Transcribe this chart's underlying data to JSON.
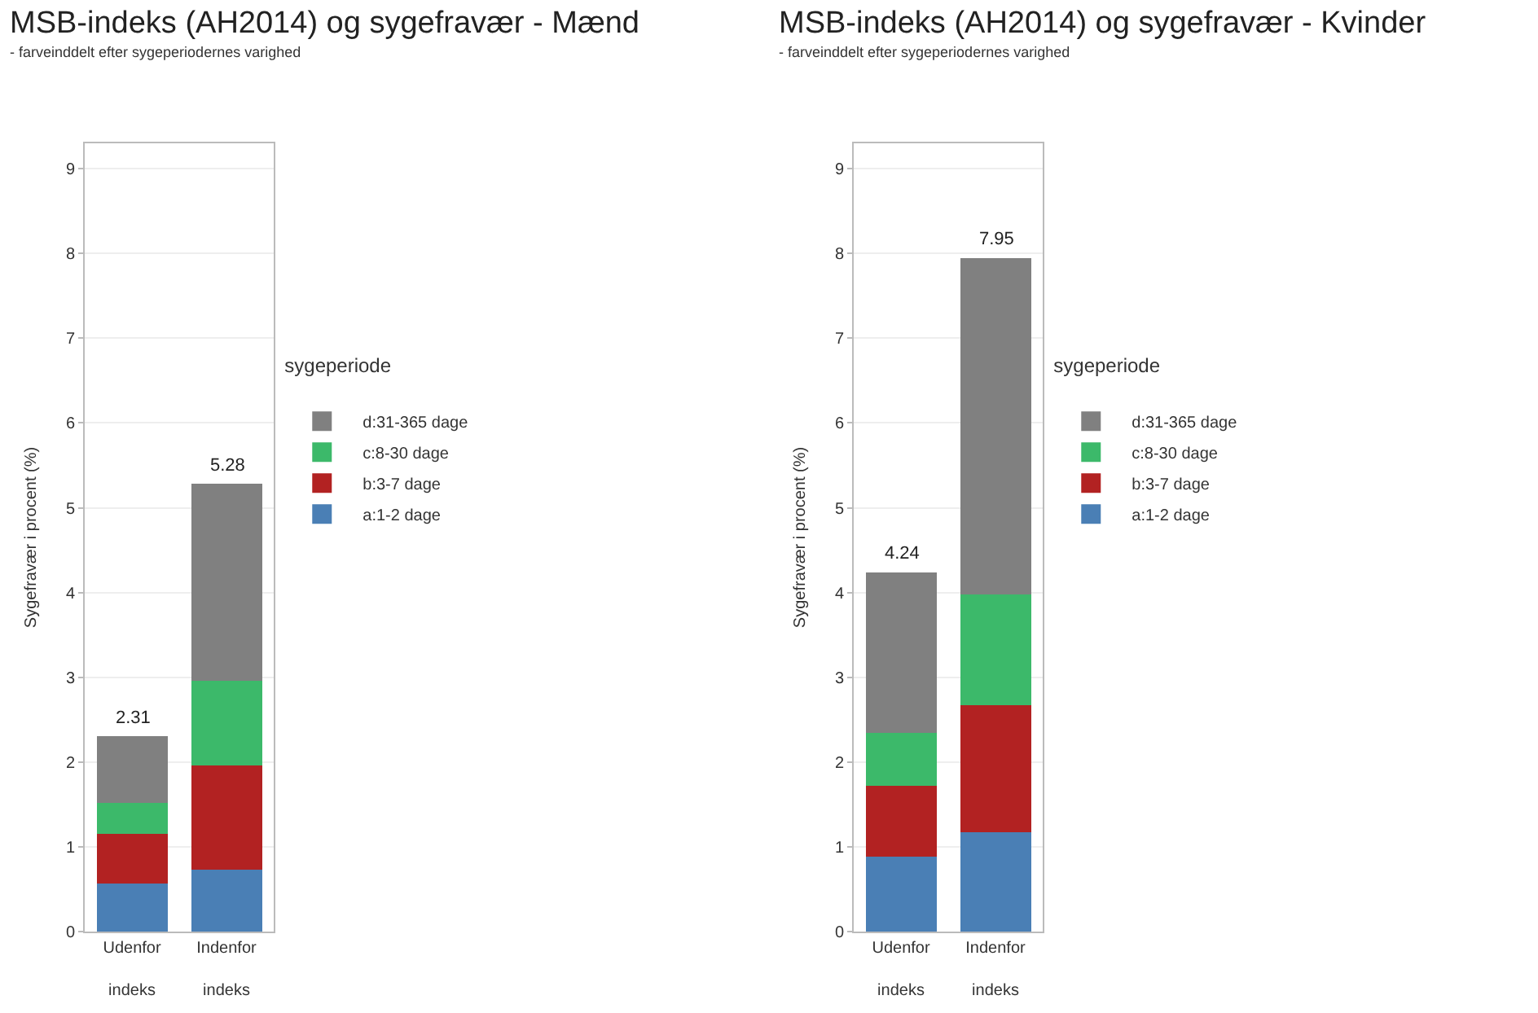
{
  "chart_data": [
    {
      "type": "bar",
      "stacked": true,
      "title": "MSB-indeks (AH2014) og sygefravær - Mænd",
      "subtitle": "- farveinddelt efter sygeperiodernes varighed",
      "ylabel": "Sygefravær i procent (%)",
      "legend_title": "sygeperiode",
      "categories": [
        "Udenfor\nindeks",
        "Indenfor\nindeks"
      ],
      "ylim": [
        0,
        9.3
      ],
      "yticks": [
        0,
        1,
        2,
        3,
        4,
        5,
        6,
        7,
        8,
        9
      ],
      "grid": "y",
      "legend": "right",
      "totals": [
        "2.31",
        "5.28"
      ],
      "series": [
        {
          "name": "a:1-2 dage",
          "color": "#4a7fb5",
          "values": [
            0.57,
            0.73
          ]
        },
        {
          "name": "b:3-7 dage",
          "color": "#b22222",
          "values": [
            0.58,
            1.23
          ]
        },
        {
          "name": "c:8-30 dage",
          "color": "#3cb96a",
          "values": [
            0.37,
            1.0
          ]
        },
        {
          "name": "d:31-365 dage",
          "color": "#808080",
          "values": [
            0.79,
            2.32
          ]
        }
      ]
    },
    {
      "type": "bar",
      "stacked": true,
      "title": "MSB-indeks (AH2014) og sygefravær - Kvinder",
      "subtitle": "- farveinddelt efter sygeperiodernes varighed",
      "ylabel": "Sygefravær i procent (%)",
      "legend_title": "sygeperiode",
      "categories": [
        "Udenfor\nindeks",
        "Indenfor\nindeks"
      ],
      "ylim": [
        0,
        9.3
      ],
      "yticks": [
        0,
        1,
        2,
        3,
        4,
        5,
        6,
        7,
        8,
        9
      ],
      "grid": "y",
      "legend": "right",
      "totals": [
        "4.24",
        "7.95"
      ],
      "series": [
        {
          "name": "a:1-2 dage",
          "color": "#4a7fb5",
          "values": [
            0.88,
            1.17
          ]
        },
        {
          "name": "b:3-7 dage",
          "color": "#b22222",
          "values": [
            0.84,
            1.5
          ]
        },
        {
          "name": "c:8-30 dage",
          "color": "#3cb96a",
          "values": [
            0.62,
            1.31
          ]
        },
        {
          "name": "d:31-365 dage",
          "color": "#808080",
          "values": [
            1.9,
            3.97
          ]
        }
      ]
    }
  ]
}
